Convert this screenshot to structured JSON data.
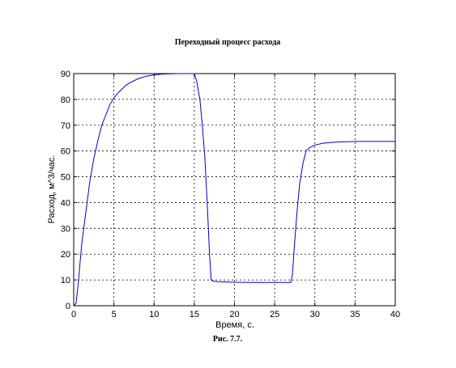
{
  "chart_data": {
    "type": "line",
    "title": "Переходный процесс расхода",
    "xlabel": "Время, с.",
    "ylabel": "Расход, м^3/час.",
    "caption": "Рис. 7.7.",
    "xlim": [
      0,
      40
    ],
    "ylim": [
      0,
      90
    ],
    "xticks": [
      0,
      5,
      10,
      15,
      20,
      25,
      30,
      35,
      40
    ],
    "yticks": [
      0,
      10,
      20,
      30,
      40,
      50,
      60,
      70,
      80,
      90
    ],
    "grid": true,
    "line_color": "#0000cc",
    "series": [
      {
        "x": [
          0,
          0.3,
          0.6,
          1,
          1.5,
          2,
          2.5,
          3,
          3.5,
          4,
          4.5,
          5,
          5.5,
          6,
          6.5,
          7,
          8,
          9,
          10,
          11,
          12,
          13,
          14,
          15,
          15.3,
          15.7,
          16,
          16.3,
          16.6,
          16.9,
          17.1,
          17.4,
          18,
          20,
          22,
          24,
          26,
          27,
          27.2,
          27.5,
          27.8,
          28.1,
          28.5,
          28.9,
          29.3,
          30,
          31,
          32,
          33,
          34,
          35,
          36,
          37,
          38,
          39,
          40
        ],
        "y": [
          0,
          1,
          10,
          24,
          36,
          48,
          57,
          64,
          70,
          74,
          78,
          80.5,
          82.5,
          84,
          85.5,
          86.5,
          88,
          89,
          89.5,
          89.8,
          89.9,
          90,
          90,
          90,
          87,
          80,
          70,
          58,
          40,
          20,
          10,
          9.5,
          9.3,
          9.1,
          9,
          9,
          9,
          9,
          12,
          25,
          37,
          47,
          55,
          60,
          61.2,
          62.3,
          63,
          63.3,
          63.5,
          63.6,
          63.7,
          63.7,
          63.7,
          63.7,
          63.7,
          63.7
        ]
      }
    ]
  }
}
